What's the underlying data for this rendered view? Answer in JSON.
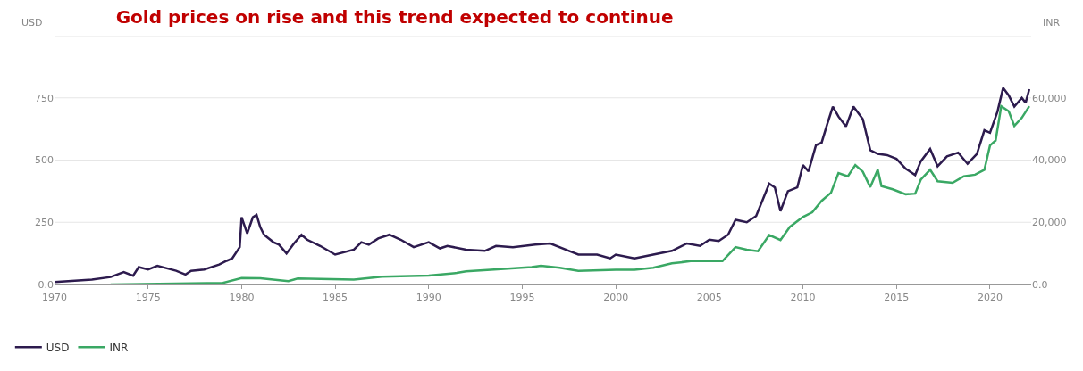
{
  "chart_data": {
    "type": "line",
    "title": "Gold prices on rise and this trend expected to continue",
    "ylabel": "USD",
    "y2label": "INR",
    "xlim": [
      1970,
      2022.2
    ],
    "xticks": [
      1970,
      1975,
      1980,
      1985,
      1990,
      1995,
      2000,
      2005,
      2010,
      2015,
      2020
    ],
    "ylim": [
      0,
      1000
    ],
    "yticks": [
      {
        "value": 0,
        "label": "0.0"
      },
      250,
      500,
      750,
      {
        "value": 1000,
        "label": null
      }
    ],
    "y2lim": [
      0,
      80000
    ],
    "y2ticks": [
      {
        "value": 0,
        "label": "0.0"
      },
      {
        "value": 20000,
        "label": "20,000"
      },
      {
        "value": 40000,
        "label": "40,000"
      },
      {
        "value": 60000,
        "label": "60,000"
      }
    ],
    "grid": "y",
    "legend": "bottom left",
    "marker": "none",
    "line_style": "solid",
    "series": [
      {
        "name": "USD",
        "color": "#2d1b4e",
        "x": [
          1970,
          1972,
          1973,
          1973.7,
          1974.2,
          1974.5,
          1975,
          1975.5,
          1976.5,
          1977,
          1977.3,
          1978,
          1978.8,
          1979.2,
          1979.5,
          1979.9,
          1980,
          1980.3,
          1980.6,
          1980.8,
          1981,
          1981.2,
          1981.7,
          1982,
          1982.4,
          1982.8,
          1983.2,
          1983.5,
          1984.2,
          1985,
          1986,
          1986.4,
          1986.8,
          1987.3,
          1987.9,
          1988.5,
          1989.2,
          1990,
          1990.6,
          1991,
          1992,
          1993,
          1993.6,
          1994.5,
          1995.7,
          1996.5,
          1997.5,
          1998,
          1999,
          1999.7,
          2000,
          2001,
          2002,
          2003,
          2003.8,
          2004.5,
          2005,
          2005.5,
          2006,
          2006.4,
          2007,
          2007.5,
          2008.2,
          2008.5,
          2008.8,
          2009.2,
          2009.7,
          2010,
          2010.3,
          2010.7,
          2011,
          2011.3,
          2011.6,
          2011.9,
          2012.3,
          2012.7,
          2013.2,
          2013.6,
          2014,
          2014.5,
          2015,
          2015.5,
          2016,
          2016.3,
          2016.8,
          2017.2,
          2017.7,
          2018.3,
          2018.8,
          2019.3,
          2019.7,
          2020,
          2020.4,
          2020.7,
          2021,
          2021.3,
          2021.7,
          2021.9,
          2022.1
        ],
        "values": [
          10,
          20,
          30,
          50,
          35,
          70,
          60,
          75,
          55,
          40,
          55,
          60,
          80,
          95,
          105,
          150,
          270,
          205,
          270,
          280,
          230,
          200,
          170,
          160,
          125,
          165,
          200,
          180,
          155,
          120,
          140,
          170,
          160,
          185,
          200,
          180,
          150,
          170,
          145,
          155,
          140,
          135,
          155,
          150,
          160,
          165,
          135,
          120,
          120,
          105,
          120,
          105,
          120,
          135,
          165,
          155,
          180,
          175,
          200,
          260,
          250,
          275,
          405,
          390,
          295,
          375,
          390,
          480,
          455,
          560,
          570,
          645,
          715,
          675,
          635,
          715,
          665,
          540,
          525,
          520,
          505,
          465,
          440,
          495,
          545,
          475,
          515,
          530,
          485,
          525,
          620,
          610,
          695,
          790,
          760,
          715,
          750,
          730,
          785
        ]
      },
      {
        "name": "INR",
        "color": "#3aa864",
        "axis": "y2",
        "x": [
          1973,
          1979,
          1980,
          1981,
          1982.5,
          1983,
          1986,
          1987.5,
          1990,
          1991.5,
          1992,
          1993.5,
          1995.5,
          1996,
          1997,
          1998,
          2000,
          2001,
          2002,
          2003,
          2004,
          2005,
          2005.7,
          2006.4,
          2007,
          2007.6,
          2008.2,
          2008.8,
          2009.3,
          2010,
          2010.5,
          2011,
          2011.5,
          2011.9,
          2012.4,
          2012.8,
          2013.2,
          2013.6,
          2014,
          2014.2,
          2014.8,
          2015.5,
          2016,
          2016.3,
          2016.8,
          2017.2,
          2018,
          2018.6,
          2019.2,
          2019.7,
          2020,
          2020.3,
          2020.6,
          2021,
          2021.3,
          2021.7,
          2022.1
        ],
        "values": [
          0,
          500,
          2100,
          2000,
          1100,
          1900,
          1600,
          2500,
          2900,
          3700,
          4200,
          4800,
          5600,
          6000,
          5400,
          4400,
          4700,
          4700,
          5400,
          6800,
          7500,
          7500,
          7500,
          12000,
          11200,
          10700,
          15900,
          14300,
          18500,
          21700,
          23200,
          26900,
          29500,
          35800,
          34800,
          38400,
          36300,
          31300,
          36900,
          31600,
          30600,
          29000,
          29200,
          33700,
          36900,
          33200,
          32700,
          34800,
          35300,
          36900,
          44700,
          46300,
          57300,
          55700,
          51000,
          53600,
          57300
        ]
      }
    ]
  }
}
